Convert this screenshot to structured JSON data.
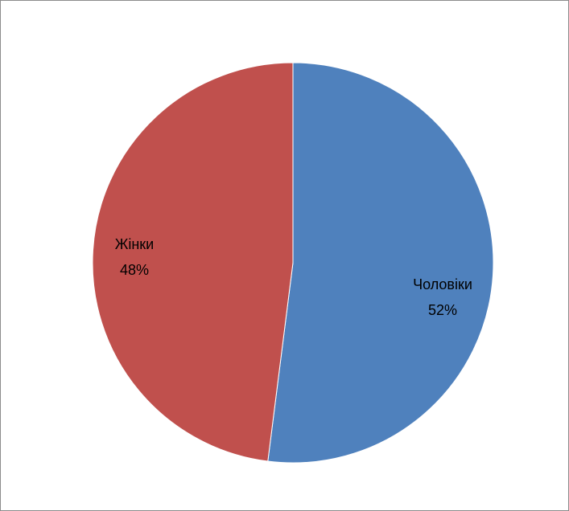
{
  "chart_data": {
    "type": "pie",
    "categories": [
      "Чоловіки",
      "Жінки"
    ],
    "values": [
      52,
      48
    ],
    "labels": [
      {
        "name": "Чоловіки",
        "percent": "52%"
      },
      {
        "name": "Жінки",
        "percent": "48%"
      }
    ],
    "colors": [
      "#4f81bd",
      "#c0504d"
    ],
    "start": "top, clockwise",
    "legend": "none"
  }
}
